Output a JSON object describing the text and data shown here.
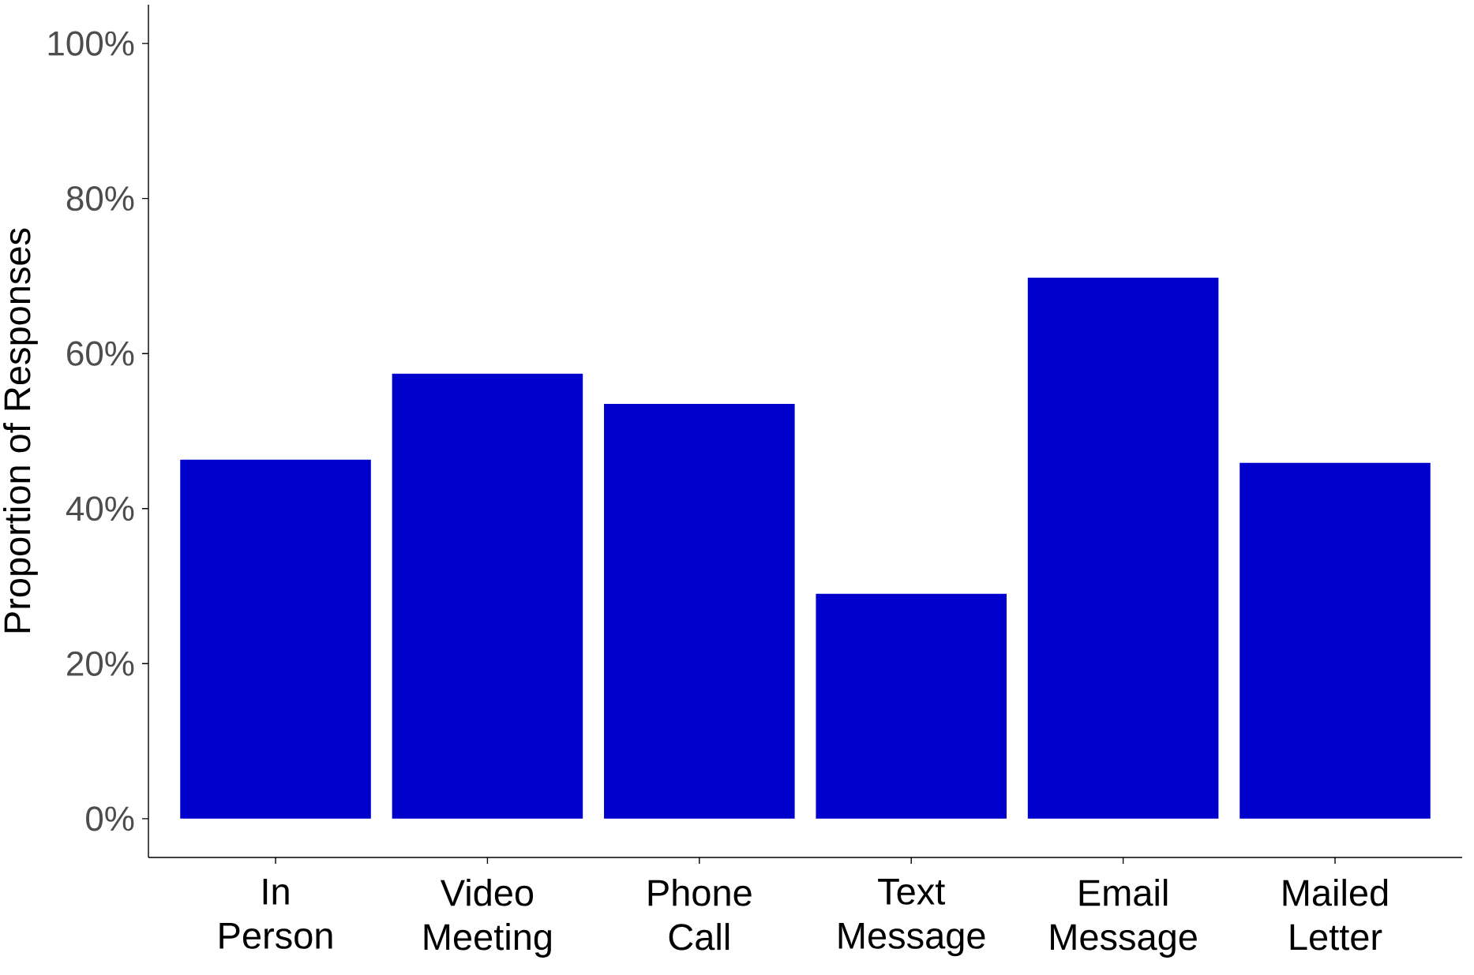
{
  "chart_data": {
    "type": "bar",
    "ylabel": "Proportion of Responses",
    "categories": [
      "In Person",
      "Video Meeting",
      "Phone Call",
      "Text Message",
      "Email Message",
      "Mailed Letter"
    ],
    "values": [
      46.3,
      57.4,
      53.5,
      29.0,
      69.8,
      45.9
    ],
    "color": "#0000cd",
    "ylim": [
      -5,
      105
    ],
    "yticks": [
      {
        "value": 0,
        "label": "0%"
      },
      {
        "value": 20,
        "label": "20%"
      },
      {
        "value": 40,
        "label": "40%"
      },
      {
        "value": 60,
        "label": "60%"
      },
      {
        "value": 80,
        "label": "80%"
      },
      {
        "value": 100,
        "label": "100%"
      }
    ]
  }
}
